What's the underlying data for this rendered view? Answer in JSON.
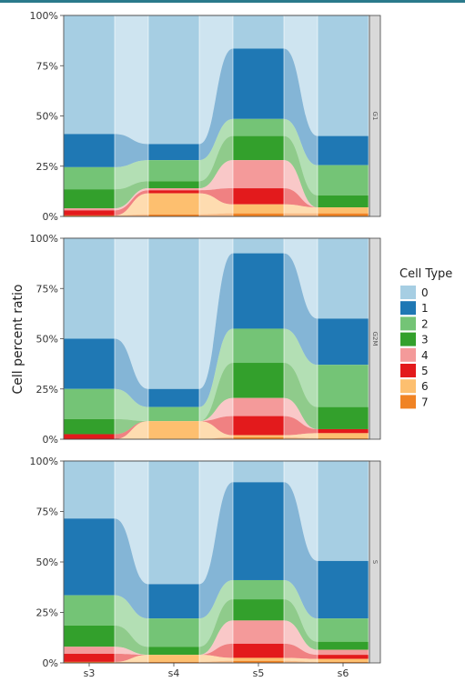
{
  "chart_data": {
    "type": "area",
    "title": "",
    "ylabel": "Cell percent ratio",
    "xlabel": "",
    "categories": [
      "s3",
      "s4",
      "s5",
      "s6"
    ],
    "y_ticks": [
      "0%",
      "25%",
      "50%",
      "75%",
      "100%"
    ],
    "ylim": [
      0,
      100
    ],
    "legend": {
      "title": "Cell Type",
      "position": "right",
      "entries": [
        {
          "name": "0",
          "color": "#a6cee3"
        },
        {
          "name": "1",
          "color": "#1f78b4"
        },
        {
          "name": "2",
          "color": "#74c476"
        },
        {
          "name": "3",
          "color": "#33a02c"
        },
        {
          "name": "4",
          "color": "#f49a9a"
        },
        {
          "name": "5",
          "color": "#e31a1c"
        },
        {
          "name": "6",
          "color": "#fdbf6f"
        },
        {
          "name": "7",
          "color": "#f08324"
        }
      ]
    },
    "panels": [
      {
        "label": "G1",
        "series": [
          {
            "name": "0",
            "values": [
              59,
              64,
              16.5,
              60
            ]
          },
          {
            "name": "1",
            "values": [
              16.5,
              8,
              35,
              14.5
            ]
          },
          {
            "name": "2",
            "values": [
              11,
              10.5,
              8.5,
              15
            ]
          },
          {
            "name": "3",
            "values": [
              9.5,
              3.5,
              12,
              6
            ]
          },
          {
            "name": "4",
            "values": [
              1,
              1,
              14,
              0
            ]
          },
          {
            "name": "5",
            "values": [
              2.5,
              1.5,
              8,
              0
            ]
          },
          {
            "name": "6",
            "values": [
              0,
              10.5,
              4.5,
              3
            ]
          },
          {
            "name": "7",
            "values": [
              0.5,
              1,
              1.5,
              1.5
            ]
          }
        ]
      },
      {
        "label": "G2M",
        "series": [
          {
            "name": "0",
            "values": [
              50,
              75,
              7.5,
              40
            ]
          },
          {
            "name": "1",
            "values": [
              25,
              9,
              37.5,
              23
            ]
          },
          {
            "name": "2",
            "values": [
              15,
              7,
              17,
              21
            ]
          },
          {
            "name": "3",
            "values": [
              7.5,
              0,
              17.5,
              11
            ]
          },
          {
            "name": "4",
            "values": [
              0,
              0,
              9,
              0
            ]
          },
          {
            "name": "5",
            "values": [
              2.5,
              0,
              9.5,
              2
            ]
          },
          {
            "name": "6",
            "values": [
              0,
              9,
              1,
              2.5
            ]
          },
          {
            "name": "7",
            "values": [
              0,
              0,
              1,
              0.5
            ]
          }
        ]
      },
      {
        "label": "S",
        "series": [
          {
            "name": "0",
            "values": [
              28.5,
              61,
              10.5,
              49.5
            ]
          },
          {
            "name": "1",
            "values": [
              38,
              17,
              48.5,
              28.5
            ]
          },
          {
            "name": "2",
            "values": [
              15,
              14,
              9.5,
              11.5
            ]
          },
          {
            "name": "3",
            "values": [
              10.5,
              4,
              10.5,
              4
            ]
          },
          {
            "name": "4",
            "values": [
              3.5,
              0,
              11.5,
              2.5
            ]
          },
          {
            "name": "5",
            "values": [
              4,
              0,
              7,
              2
            ]
          },
          {
            "name": "6",
            "values": [
              0,
              3.5,
              1.5,
              1.5
            ]
          },
          {
            "name": "7",
            "values": [
              0.5,
              0.5,
              1,
              0.5
            ]
          }
        ]
      }
    ],
    "grid": false
  }
}
